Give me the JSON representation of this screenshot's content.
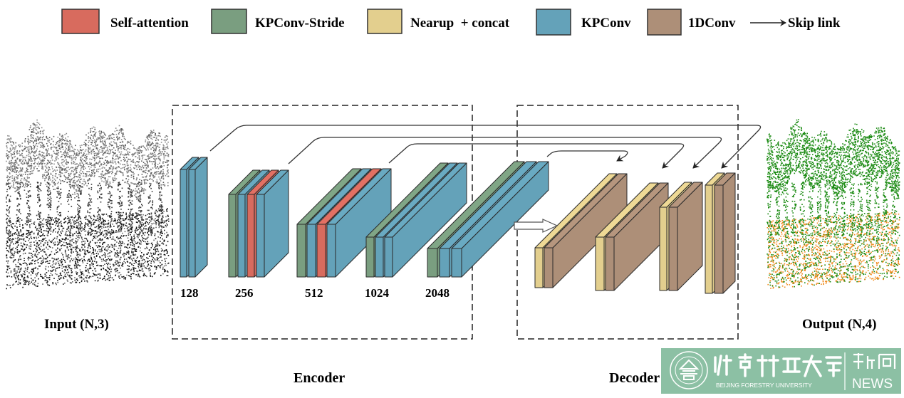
{
  "legend": {
    "items": [
      {
        "key": "self_attention",
        "label": "Self-attention",
        "color": "#d86b5e"
      },
      {
        "key": "kpconv_stride",
        "label": "KPConv-Stride",
        "color": "#7a9e80"
      },
      {
        "key": "nearup_concat",
        "label": "Nearup  + concat",
        "color": "#e3cf8e"
      },
      {
        "key": "kpconv",
        "label": "KPConv",
        "color": "#64a2b9"
      },
      {
        "key": "conv1d",
        "label": "1DConv",
        "color": "#ad8f78"
      }
    ],
    "skip_link_label": "Skip link"
  },
  "input_label": "Input (N,3)",
  "output_label": "Output (N,4)",
  "encoder": {
    "title": "Encoder",
    "blocks": [
      {
        "channels": "128",
        "layers": [
          "kpconv",
          "kpconv"
        ]
      },
      {
        "channels": "256",
        "layers": [
          "kpconv_stride",
          "kpconv",
          "self_attention",
          "kpconv"
        ]
      },
      {
        "channels": "512",
        "layers": [
          "kpconv_stride",
          "kpconv",
          "self_attention",
          "kpconv"
        ]
      },
      {
        "channels": "1024",
        "layers": [
          "kpconv_stride",
          "kpconv",
          "kpconv"
        ]
      },
      {
        "channels": "2048",
        "layers": [
          "kpconv_stride",
          "kpconv",
          "kpconv"
        ]
      }
    ]
  },
  "decoder": {
    "title": "Decoder",
    "blocks": [
      {
        "layers": [
          "nearup_concat",
          "conv1d"
        ]
      },
      {
        "layers": [
          "nearup_concat",
          "conv1d"
        ]
      },
      {
        "layers": [
          "nearup_concat",
          "conv1d"
        ]
      },
      {
        "layers": [
          "nearup_concat",
          "conv1d"
        ]
      }
    ]
  },
  "colors": {
    "input_cloud": "#555555",
    "output_vegetation": "#1a8a12",
    "output_ground": "#f08a1c",
    "watermark_bg": "#8cc0a4"
  },
  "watermark": {
    "name_cn": "北京林业大学",
    "name_en": "BEIJING FORESTRY UNIVERSITY",
    "section_cn": "新闻",
    "section_en": "NEWS",
    "year": "1952"
  }
}
